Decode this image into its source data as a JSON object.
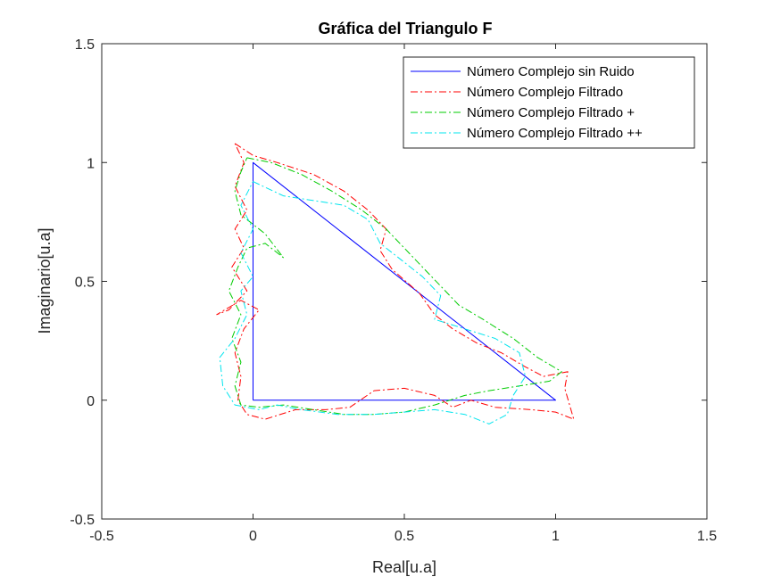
{
  "chart_data": {
    "type": "line",
    "title": "Gráfica del Triangulo F",
    "xlabel": "Real[u.a]",
    "ylabel": "Imaginario[u.a]",
    "xlim": [
      -0.5,
      1.5
    ],
    "ylim": [
      -0.5,
      1.5
    ],
    "xticks": [
      -0.5,
      0,
      0.5,
      1,
      1.5
    ],
    "yticks": [
      -0.5,
      0,
      0.5,
      1,
      1.5
    ],
    "xtick_labels": [
      "-0.5",
      "0",
      "0.5",
      "1",
      "1.5"
    ],
    "ytick_labels": [
      "-0.5",
      "0",
      "0.5",
      "1",
      "1.5"
    ],
    "grid": false,
    "legend_position": "top-right",
    "series": [
      {
        "name": "Número Complejo sin Ruido",
        "color": "#0000ff",
        "style": "solid",
        "points": [
          [
            0,
            0
          ],
          [
            1,
            0
          ],
          [
            0,
            1
          ],
          [
            0,
            0
          ]
        ]
      },
      {
        "name": "Número Complejo Filtrado",
        "color": "#ff0000",
        "style": "dashdot",
        "points": [
          [
            -0.06,
            1.08
          ],
          [
            0.0,
            1.03
          ],
          [
            0.08,
            1.0
          ],
          [
            0.2,
            0.95
          ],
          [
            0.3,
            0.88
          ],
          [
            0.38,
            0.8
          ],
          [
            0.44,
            0.72
          ],
          [
            0.42,
            0.63
          ],
          [
            0.46,
            0.55
          ],
          [
            0.55,
            0.45
          ],
          [
            0.6,
            0.36
          ],
          [
            0.66,
            0.3
          ],
          [
            0.74,
            0.24
          ],
          [
            0.82,
            0.2
          ],
          [
            0.9,
            0.14
          ],
          [
            0.96,
            0.1
          ],
          [
            1.04,
            0.12
          ],
          [
            1.03,
            0.05
          ],
          [
            1.06,
            -0.08
          ],
          [
            1.0,
            -0.05
          ],
          [
            0.92,
            -0.04
          ],
          [
            0.8,
            -0.03
          ],
          [
            0.72,
            0.0
          ],
          [
            0.66,
            -0.03
          ],
          [
            0.6,
            0.02
          ],
          [
            0.5,
            0.05
          ],
          [
            0.4,
            0.04
          ],
          [
            0.32,
            -0.03
          ],
          [
            0.24,
            -0.04
          ],
          [
            0.14,
            -0.04
          ],
          [
            0.04,
            -0.08
          ],
          [
            -0.02,
            -0.06
          ],
          [
            -0.05,
            0.0
          ],
          [
            -0.04,
            0.1
          ],
          [
            -0.06,
            0.2
          ],
          [
            -0.03,
            0.3
          ],
          [
            0.02,
            0.38
          ],
          [
            -0.04,
            0.42
          ],
          [
            -0.12,
            0.36
          ],
          [
            -0.08,
            0.38
          ],
          [
            -0.02,
            0.46
          ],
          [
            -0.07,
            0.56
          ],
          [
            -0.03,
            0.64
          ],
          [
            -0.06,
            0.72
          ],
          [
            -0.02,
            0.8
          ],
          [
            -0.06,
            0.9
          ],
          [
            -0.03,
            1.0
          ],
          [
            -0.06,
            1.08
          ]
        ]
      },
      {
        "name": "Número Complejo Filtrado +",
        "color": "#00cc00",
        "style": "dashdot",
        "points": [
          [
            -0.02,
            1.02
          ],
          [
            0.06,
            1.0
          ],
          [
            0.16,
            0.95
          ],
          [
            0.26,
            0.88
          ],
          [
            0.36,
            0.8
          ],
          [
            0.44,
            0.72
          ],
          [
            0.5,
            0.64
          ],
          [
            0.56,
            0.56
          ],
          [
            0.62,
            0.48
          ],
          [
            0.68,
            0.4
          ],
          [
            0.76,
            0.34
          ],
          [
            0.86,
            0.26
          ],
          [
            0.94,
            0.18
          ],
          [
            1.02,
            0.12
          ],
          [
            0.98,
            0.08
          ],
          [
            0.88,
            0.06
          ],
          [
            0.78,
            0.04
          ],
          [
            0.7,
            0.02
          ],
          [
            0.6,
            -0.02
          ],
          [
            0.5,
            -0.05
          ],
          [
            0.4,
            -0.06
          ],
          [
            0.3,
            -0.06
          ],
          [
            0.2,
            -0.04
          ],
          [
            0.1,
            -0.02
          ],
          [
            0.02,
            -0.03
          ],
          [
            -0.04,
            -0.02
          ],
          [
            -0.06,
            0.06
          ],
          [
            -0.04,
            0.16
          ],
          [
            -0.07,
            0.26
          ],
          [
            -0.04,
            0.36
          ],
          [
            -0.08,
            0.46
          ],
          [
            -0.05,
            0.56
          ],
          [
            -0.02,
            0.64
          ],
          [
            0.04,
            0.66
          ],
          [
            0.1,
            0.6
          ],
          [
            0.04,
            0.7
          ],
          [
            -0.04,
            0.78
          ],
          [
            -0.06,
            0.88
          ],
          [
            -0.04,
            0.96
          ],
          [
            -0.02,
            1.02
          ]
        ]
      },
      {
        "name": "Número Complejo Filtrado ++",
        "color": "#00e5ee",
        "style": "dashdot",
        "points": [
          [
            0.0,
            0.92
          ],
          [
            0.1,
            0.86
          ],
          [
            0.2,
            0.84
          ],
          [
            0.3,
            0.82
          ],
          [
            0.38,
            0.76
          ],
          [
            0.42,
            0.66
          ],
          [
            0.48,
            0.6
          ],
          [
            0.56,
            0.52
          ],
          [
            0.62,
            0.44
          ],
          [
            0.6,
            0.34
          ],
          [
            0.7,
            0.3
          ],
          [
            0.8,
            0.26
          ],
          [
            0.88,
            0.2
          ],
          [
            0.9,
            0.1
          ],
          [
            0.86,
            0.02
          ],
          [
            0.84,
            -0.06
          ],
          [
            0.78,
            -0.1
          ],
          [
            0.7,
            -0.06
          ],
          [
            0.6,
            -0.04
          ],
          [
            0.5,
            -0.05
          ],
          [
            0.4,
            -0.06
          ],
          [
            0.28,
            -0.06
          ],
          [
            0.16,
            -0.04
          ],
          [
            0.08,
            -0.02
          ],
          [
            0.02,
            -0.04
          ],
          [
            -0.06,
            -0.02
          ],
          [
            -0.1,
            0.06
          ],
          [
            -0.11,
            0.18
          ],
          [
            -0.06,
            0.26
          ],
          [
            -0.02,
            0.36
          ],
          [
            -0.04,
            0.46
          ],
          [
            0.0,
            0.52
          ],
          [
            -0.04,
            0.62
          ],
          [
            0.0,
            0.72
          ],
          [
            -0.04,
            0.82
          ],
          [
            0.0,
            0.92
          ]
        ]
      }
    ]
  }
}
